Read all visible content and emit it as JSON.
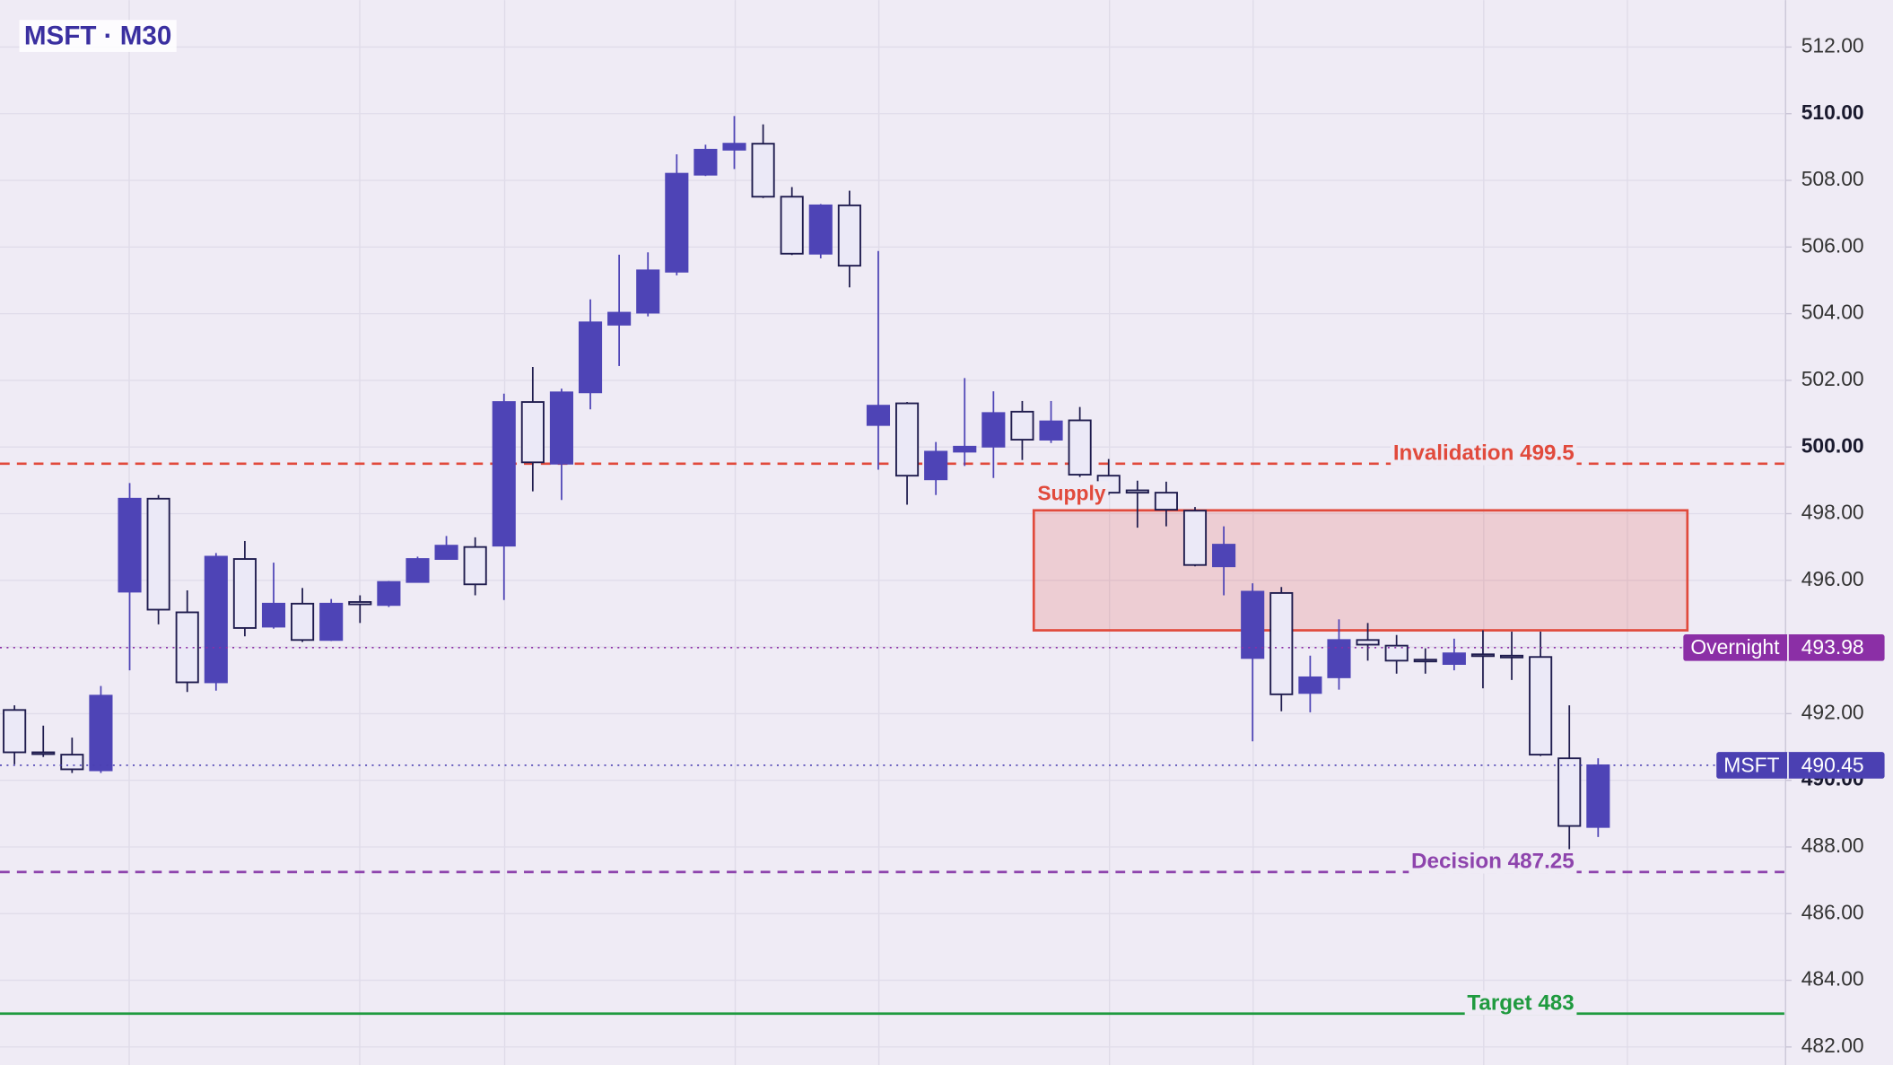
{
  "chart_data": {
    "type": "candlestick",
    "title": "MSFT · M30",
    "open": [
      492.11,
      490.84,
      490.77,
      490.3,
      495.66,
      498.45,
      495.04,
      492.94,
      496.64,
      494.61,
      495.3,
      494.21,
      495.35,
      495.26,
      495.95,
      496.64,
      497.0,
      497.04,
      501.35,
      499.5,
      501.64,
      503.67,
      504.03,
      505.26,
      508.17,
      508.92,
      509.1,
      507.51,
      505.8,
      507.25,
      500.66,
      501.31,
      499.03,
      499.86,
      500.01,
      501.06,
      500.22,
      500.8,
      499.14,
      498.7,
      498.63,
      498.09,
      496.42,
      493.67,
      495.62,
      492.62,
      493.09,
      494.21,
      494.04,
      493.62,
      493.49,
      493.78,
      493.74,
      493.7,
      490.66,
      488.6
    ],
    "high": [
      492.25,
      491.64,
      491.28,
      492.83,
      498.92,
      498.56,
      495.7,
      496.82,
      497.18,
      496.53,
      495.77,
      495.44,
      495.55,
      495.98,
      496.71,
      497.33,
      497.29,
      501.6,
      502.4,
      501.75,
      504.43,
      505.77,
      505.84,
      508.78,
      509.07,
      509.93,
      509.68,
      507.8,
      507.29,
      507.69,
      505.88,
      501.35,
      500.15,
      502.07,
      501.67,
      501.38,
      501.38,
      501.2,
      499.64,
      498.99,
      498.96,
      498.2,
      497.62,
      495.91,
      495.8,
      493.74,
      494.83,
      494.72,
      494.36,
      493.96,
      494.25,
      494.5,
      494.46,
      494.46,
      492.25,
      490.66
    ],
    "low": [
      490.48,
      490.7,
      490.22,
      490.22,
      493.3,
      494.68,
      492.65,
      492.69,
      494.32,
      494.55,
      494.15,
      494.18,
      494.72,
      495.2,
      495.93,
      496.62,
      495.55,
      495.41,
      498.67,
      498.41,
      501.13,
      502.43,
      503.92,
      505.15,
      508.13,
      508.34,
      507.47,
      505.76,
      505.66,
      504.79,
      499.32,
      498.27,
      498.56,
      499.43,
      499.07,
      499.61,
      500.12,
      499.1,
      498.56,
      497.58,
      497.62,
      496.42,
      495.55,
      491.17,
      492.07,
      492.04,
      492.72,
      493.59,
      493.2,
      493.2,
      493.3,
      492.76,
      493.01,
      490.73,
      487.8,
      488.3
    ],
    "close": [
      490.84,
      490.8,
      490.33,
      492.54,
      498.45,
      495.12,
      492.94,
      496.71,
      494.57,
      495.3,
      494.21,
      495.3,
      495.28,
      495.95,
      496.64,
      497.04,
      495.88,
      501.35,
      499.54,
      501.64,
      503.74,
      504.03,
      505.3,
      508.2,
      508.92,
      509.1,
      507.51,
      505.8,
      507.25,
      505.44,
      501.24,
      499.14,
      499.86,
      500.01,
      501.02,
      500.22,
      500.77,
      499.17,
      498.63,
      498.63,
      498.12,
      496.46,
      497.07,
      495.66,
      492.58,
      493.09,
      494.21,
      494.07,
      493.59,
      493.59,
      493.81,
      493.74,
      493.7,
      490.77,
      488.63,
      490.45
    ],
    "up_color": "#4e44b6",
    "down_color": "#ebe9f7",
    "outline_color": "#1f1c4e",
    "ylim": [
      481.46,
      513.41
    ],
    "yticks": [
      {
        "value": 482,
        "label": "482.00"
      },
      {
        "value": 484,
        "label": "484.00"
      },
      {
        "value": 486,
        "label": "486.00"
      },
      {
        "value": 488,
        "label": "488.00"
      },
      {
        "value": 490,
        "label": "490.00"
      },
      {
        "value": 492,
        "label": "492.00"
      },
      {
        "value": 494,
        "label": "494.00"
      },
      {
        "value": 496,
        "label": "496.00"
      },
      {
        "value": 498,
        "label": "498.00"
      },
      {
        "value": 500,
        "label": "500.00"
      },
      {
        "value": 502,
        "label": "502.00"
      },
      {
        "value": 504,
        "label": "504.00"
      },
      {
        "value": 506,
        "label": "506.00"
      },
      {
        "value": 508,
        "label": "508.00"
      },
      {
        "value": 510,
        "label": "510.00"
      },
      {
        "value": 512,
        "label": "512.00"
      }
    ],
    "grid": true,
    "levels": [
      {
        "label": "Invalidation 499.5",
        "value": 499.5,
        "color": "#e14a3c",
        "style": "dashed"
      },
      {
        "label": "Decision 487.25",
        "value": 487.25,
        "color": "#8e44ad",
        "style": "dashed"
      },
      {
        "label": "Target 483",
        "value": 483,
        "color": "#1f9a3f",
        "style": "solid"
      }
    ],
    "badges": [
      {
        "name": "Overnight",
        "value": 493.98,
        "color": "#8b2fa6"
      },
      {
        "name": "MSFT",
        "value": 490.45,
        "color": "#4b40b2"
      }
    ],
    "zone": {
      "label": "Supply",
      "high": 498.1,
      "low": 494.5,
      "start": 35.4,
      "end": 58.1,
      "color": "#e14a3c"
    }
  }
}
